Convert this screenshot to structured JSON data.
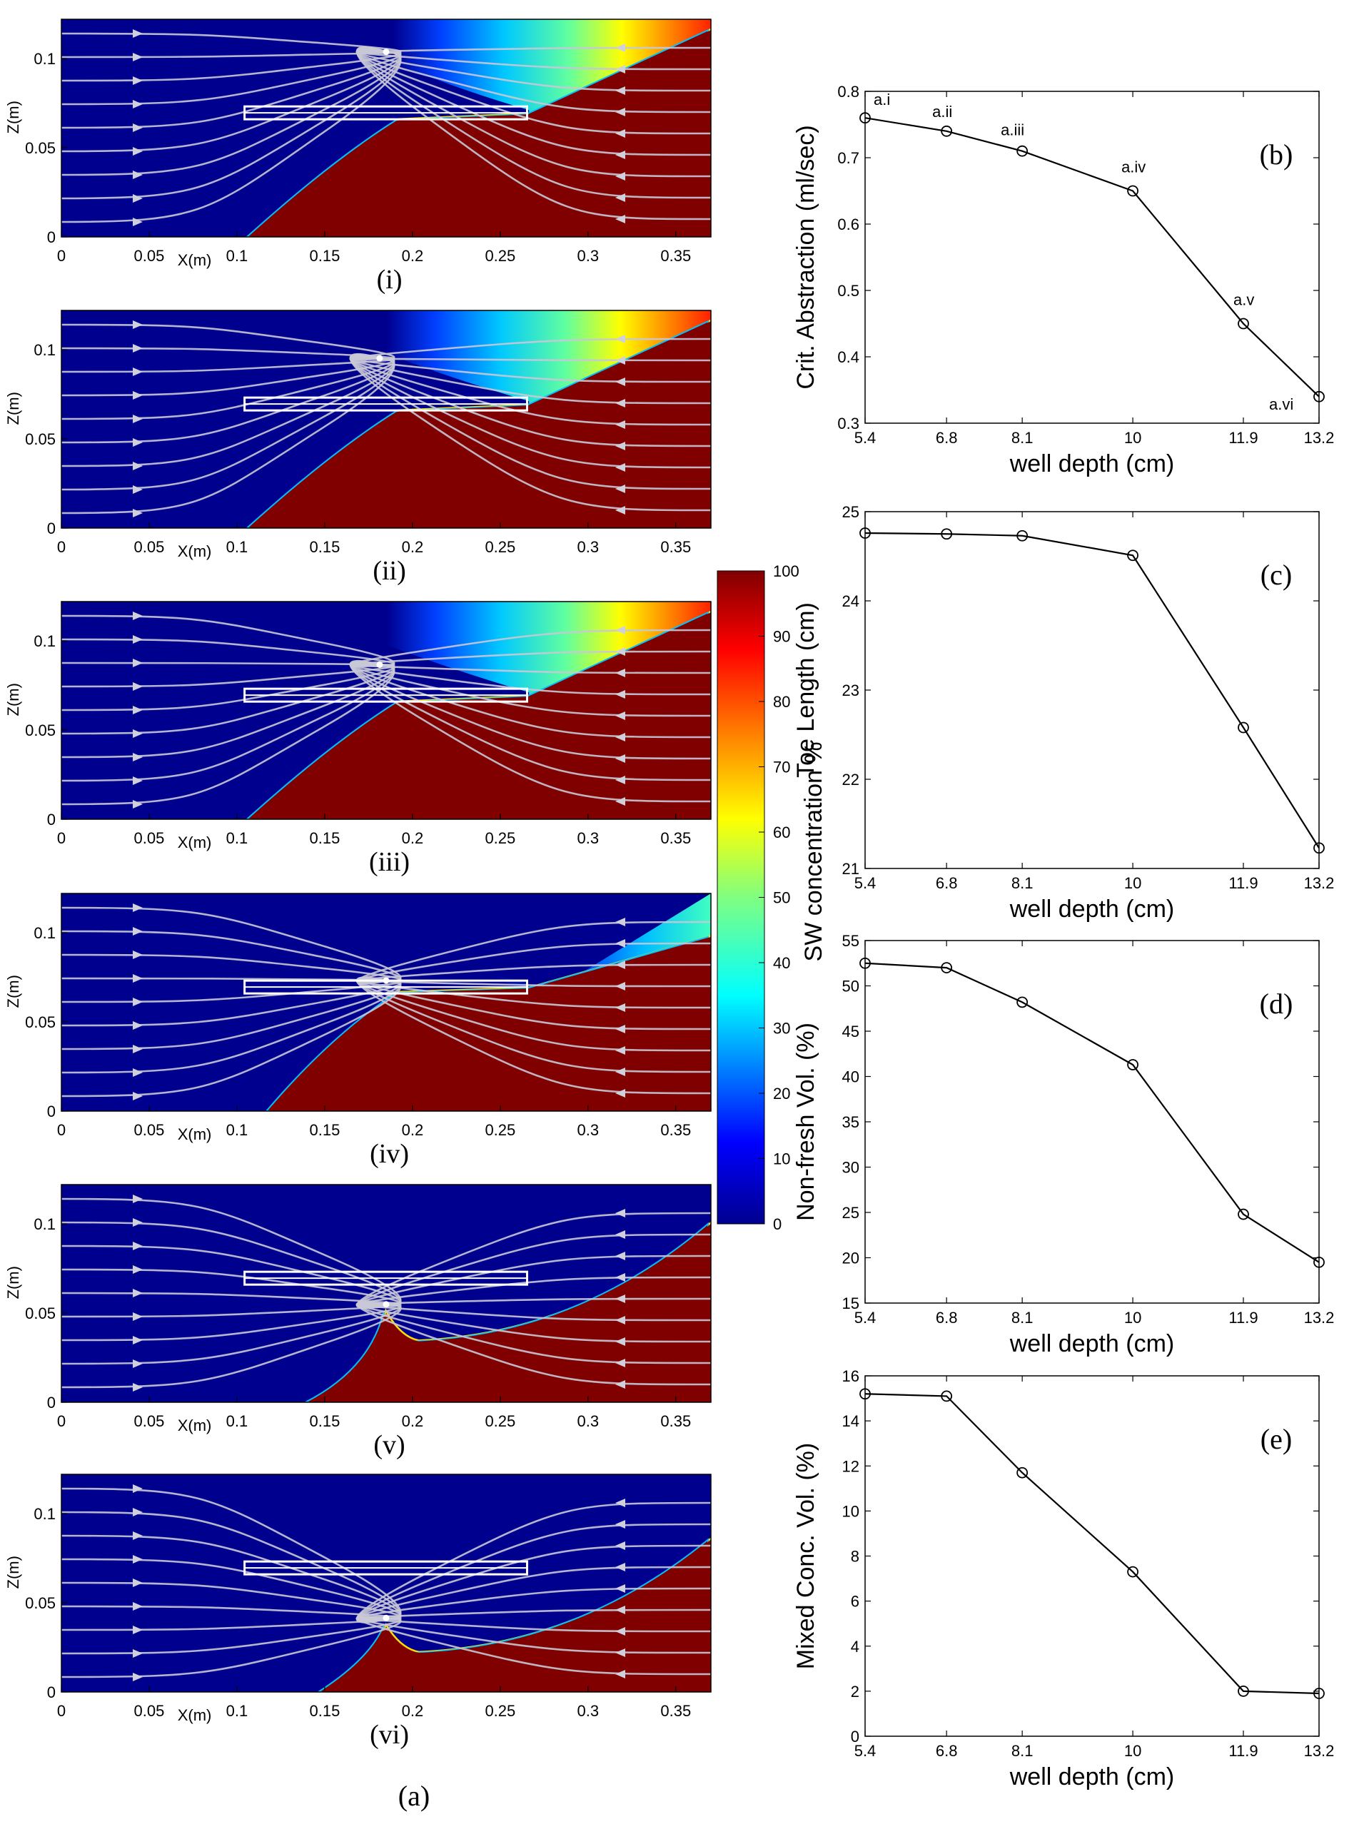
{
  "figure_label": "(a)",
  "panels_a": [
    {
      "label": "(i)",
      "z_ticks": [
        "0",
        "0.05",
        "0.1"
      ],
      "x_ticks": [
        "0",
        "0.05",
        "0.1",
        "0.15",
        "0.2",
        "0.25",
        "0.3",
        "0.35"
      ],
      "xlabel": "X(m)",
      "ylabel": "Z(m)"
    },
    {
      "label": "(ii)",
      "z_ticks": [
        "0",
        "0.05",
        "0.1"
      ],
      "x_ticks": [
        "0",
        "0.05",
        "0.1",
        "0.15",
        "0.2",
        "0.25",
        "0.3",
        "0.35"
      ],
      "xlabel": "X(m)",
      "ylabel": "Z(m)"
    },
    {
      "label": "(iii)",
      "z_ticks": [
        "0",
        "0.05",
        "0.1"
      ],
      "x_ticks": [
        "0",
        "0.05",
        "0.1",
        "0.15",
        "0.2",
        "0.25",
        "0.3",
        "0.35"
      ],
      "xlabel": "X(m)",
      "ylabel": "Z(m)"
    },
    {
      "label": "(iv)",
      "z_ticks": [
        "0",
        "0.05",
        "0.1"
      ],
      "x_ticks": [
        "0",
        "0.05",
        "0.1",
        "0.15",
        "0.2",
        "0.25",
        "0.3",
        "0.35"
      ],
      "xlabel": "X(m)",
      "ylabel": "Z(m)"
    },
    {
      "label": "(v)",
      "z_ticks": [
        "0",
        "0.05",
        "0.1"
      ],
      "x_ticks": [
        "0",
        "0.05",
        "0.1",
        "0.15",
        "0.2",
        "0.25",
        "0.3",
        "0.35"
      ],
      "xlabel": "X(m)",
      "ylabel": "Z(m)"
    },
    {
      "label": "(vi)",
      "z_ticks": [
        "0",
        "0.05",
        "0.1"
      ],
      "x_ticks": [
        "0",
        "0.05",
        "0.1",
        "0.15",
        "0.2",
        "0.25",
        "0.3",
        "0.35"
      ],
      "xlabel": "X(m)",
      "ylabel": "Z(m)"
    }
  ],
  "colorbar": {
    "label": "SW concentration %",
    "ticks": [
      "0",
      "10",
      "20",
      "30",
      "40",
      "50",
      "60",
      "70",
      "80",
      "90",
      "100"
    ],
    "min": 0,
    "max": 100,
    "colors": [
      "#00008f",
      "#0000ff",
      "#0080ff",
      "#00ffff",
      "#80ff80",
      "#ffff00",
      "#ff8000",
      "#ff0000",
      "#800000"
    ]
  },
  "chart_data": [
    {
      "id": "b",
      "type": "line",
      "label": "(b)",
      "title": "",
      "xlabel": "well depth (cm)",
      "ylabel": "Crit. Abstraction (ml/sec)",
      "categories": [
        "5.4",
        "6.8",
        "8.1",
        "10",
        "11.9",
        "13.2"
      ],
      "values": [
        0.76,
        0.74,
        0.71,
        0.65,
        0.45,
        0.34
      ],
      "point_labels": [
        "a.i",
        "a.ii",
        "a.iii",
        "a.iv",
        "a.v",
        "a.vi"
      ],
      "ylim": [
        0.3,
        0.8
      ],
      "yticks": [
        "0.3",
        "0.4",
        "0.5",
        "0.6",
        "0.7",
        "0.8"
      ]
    },
    {
      "id": "c",
      "type": "line",
      "label": "(c)",
      "title": "",
      "xlabel": "well depth (cm)",
      "ylabel": "Toe Length (cm)",
      "categories": [
        "5.4",
        "6.8",
        "8.1",
        "10",
        "11.9",
        "13.2"
      ],
      "values": [
        24.76,
        24.75,
        24.73,
        24.51,
        22.58,
        21.23
      ],
      "ylim": [
        21,
        25
      ],
      "yticks": [
        "21",
        "22",
        "23",
        "24",
        "25"
      ]
    },
    {
      "id": "d",
      "type": "line",
      "label": "(d)",
      "title": "",
      "xlabel": "well depth (cm)",
      "ylabel": "Non-fresh Vol. (%)",
      "categories": [
        "5.4",
        "6.8",
        "8.1",
        "10",
        "11.9",
        "13.2"
      ],
      "values": [
        52.5,
        52.0,
        48.2,
        41.3,
        24.8,
        19.5
      ],
      "ylim": [
        15,
        55
      ],
      "yticks": [
        "15",
        "20",
        "25",
        "30",
        "35",
        "40",
        "45",
        "50",
        "55"
      ]
    },
    {
      "id": "e",
      "type": "line",
      "label": "(e)",
      "title": "",
      "xlabel": "well depth (cm)",
      "ylabel": "Mixed Conc. Vol. (%)",
      "categories": [
        "5.4",
        "6.8",
        "8.1",
        "10",
        "11.9",
        "13.2"
      ],
      "values": [
        15.2,
        15.1,
        11.7,
        7.3,
        2.0,
        1.9
      ],
      "ylim": [
        0,
        16
      ],
      "yticks": [
        "0",
        "2",
        "4",
        "6",
        "8",
        "10",
        "12",
        "14",
        "16"
      ]
    }
  ]
}
